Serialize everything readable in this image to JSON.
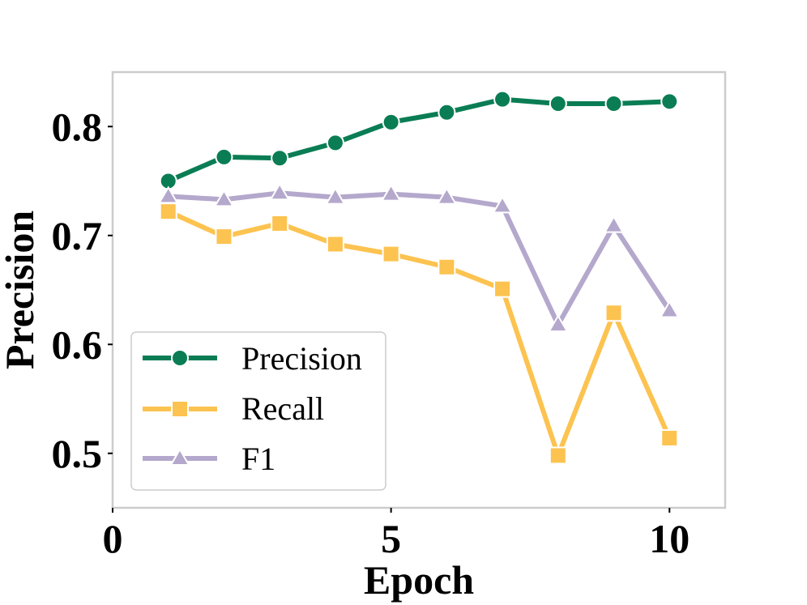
{
  "chart_data": {
    "type": "line",
    "title": "",
    "xlabel": "Epoch",
    "ylabel": "Precision",
    "xlim": [
      0,
      11
    ],
    "ylim": [
      0.45,
      0.85
    ],
    "xticks": [
      0,
      5,
      10
    ],
    "xtick_labels": [
      "0",
      "5",
      "10"
    ],
    "yticks": [
      0.5,
      0.6,
      0.7,
      0.8
    ],
    "ytick_labels": [
      "0.5",
      "0.6",
      "0.7",
      "0.8"
    ],
    "grid": false,
    "legend_position": "lower-left",
    "x": [
      1,
      2,
      3,
      4,
      5,
      6,
      7,
      8,
      9,
      10
    ],
    "series": [
      {
        "name": "Precision",
        "marker": "circle",
        "color": "#0a7d55",
        "values": [
          0.75,
          0.772,
          0.771,
          0.785,
          0.804,
          0.813,
          0.825,
          0.821,
          0.821,
          0.823
        ]
      },
      {
        "name": "Recall",
        "marker": "square",
        "color": "#fcc350",
        "values": [
          0.722,
          0.699,
          0.711,
          0.692,
          0.683,
          0.671,
          0.651,
          0.498,
          0.629,
          0.514
        ]
      },
      {
        "name": "F1",
        "marker": "triangle",
        "color": "#b4a8cc",
        "values": [
          0.736,
          0.733,
          0.739,
          0.735,
          0.738,
          0.735,
          0.727,
          0.618,
          0.709,
          0.631
        ]
      }
    ]
  },
  "colors": {
    "frame": "#cccccc",
    "axis": "#000000"
  }
}
